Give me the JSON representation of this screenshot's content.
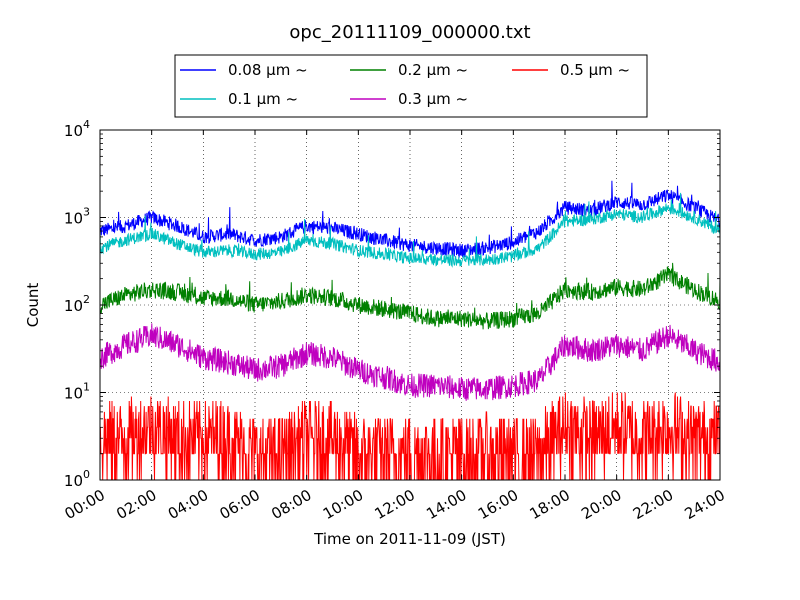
{
  "chart_data": {
    "type": "line",
    "title": "opc_20111109_000000.txt",
    "xlabel": "Time on 2011-11-09 (JST)",
    "ylabel": "Count",
    "yscale": "log",
    "ylim": [
      1,
      10000
    ],
    "xlim": [
      "00:00",
      "24:00"
    ],
    "grid": true,
    "legend": {
      "position": "top-center",
      "columns": 3
    },
    "x_ticks": [
      "00:00",
      "02:00",
      "04:00",
      "06:00",
      "08:00",
      "10:00",
      "12:00",
      "14:00",
      "16:00",
      "18:00",
      "20:00",
      "22:00",
      "24:00"
    ],
    "y_ticks": [
      {
        "base": "10",
        "exp": "0",
        "value": 1
      },
      {
        "base": "10",
        "exp": "1",
        "value": 10
      },
      {
        "base": "10",
        "exp": "2",
        "value": 100
      },
      {
        "base": "10",
        "exp": "3",
        "value": 1000
      },
      {
        "base": "10",
        "exp": "4",
        "value": 10000
      }
    ],
    "x": [
      "00:00",
      "01:00",
      "02:00",
      "03:00",
      "04:00",
      "05:00",
      "06:00",
      "07:00",
      "08:00",
      "09:00",
      "10:00",
      "11:00",
      "12:00",
      "13:00",
      "14:00",
      "15:00",
      "16:00",
      "17:00",
      "18:00",
      "19:00",
      "20:00",
      "21:00",
      "22:00",
      "23:00",
      "24:00"
    ],
    "series": [
      {
        "name": "0.08 μm ~",
        "color": "#0000ff",
        "values": [
          700,
          800,
          1000,
          800,
          600,
          650,
          550,
          600,
          800,
          750,
          650,
          550,
          480,
          450,
          420,
          450,
          520,
          700,
          1300,
          1200,
          1500,
          1400,
          1800,
          1300,
          900
        ]
      },
      {
        "name": "0.1 μm ~",
        "color": "#00bfbf",
        "values": [
          450,
          550,
          650,
          500,
          400,
          420,
          380,
          400,
          550,
          500,
          420,
          380,
          340,
          330,
          320,
          330,
          360,
          450,
          900,
          950,
          1100,
          1000,
          1300,
          1000,
          700
        ]
      },
      {
        "name": "0.2 μm ~",
        "color": "#008000",
        "values": [
          100,
          130,
          150,
          140,
          120,
          120,
          100,
          110,
          130,
          120,
          100,
          90,
          80,
          70,
          70,
          65,
          70,
          80,
          150,
          140,
          160,
          150,
          220,
          150,
          110
        ]
      },
      {
        "name": "0.3 μm ~",
        "color": "#bf00bf",
        "values": [
          25,
          35,
          45,
          35,
          25,
          22,
          18,
          20,
          28,
          25,
          18,
          15,
          12,
          12,
          11,
          11,
          12,
          14,
          35,
          30,
          35,
          30,
          45,
          30,
          22
        ]
      },
      {
        "name": "0.5 μm ~",
        "color": "#ff0000",
        "values": [
          3,
          3,
          4,
          3,
          3,
          3,
          2,
          2,
          3,
          3,
          2,
          2,
          2,
          2,
          2,
          2,
          2,
          2,
          4,
          3,
          4,
          3,
          4,
          3,
          3
        ]
      }
    ]
  }
}
